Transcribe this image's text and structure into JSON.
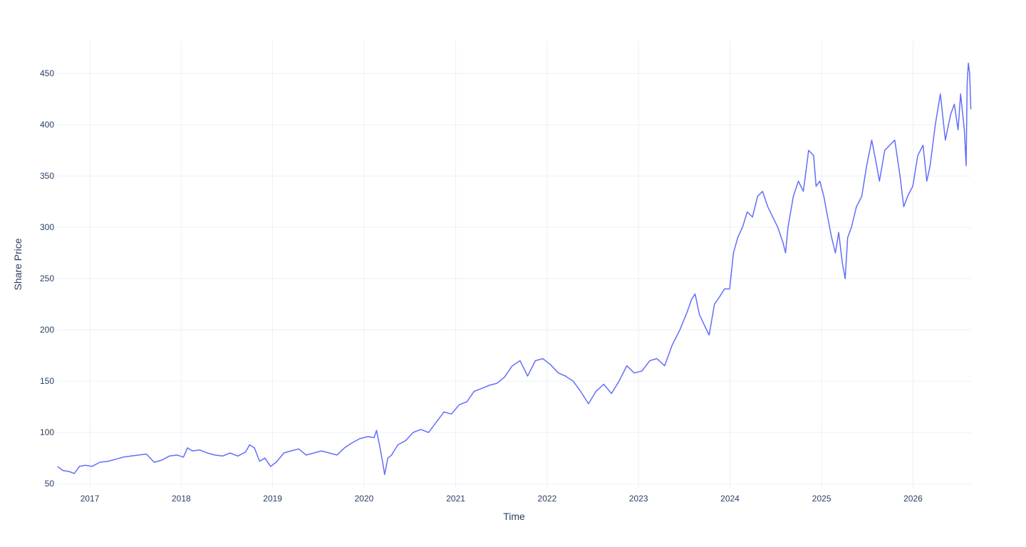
{
  "chart_data": {
    "type": "line",
    "title": "",
    "xlabel": "Time",
    "ylabel": "Share Price",
    "xlim": [
      "2016-08-23",
      "2026-08-21"
    ],
    "ylim": [
      46,
      482
    ],
    "x_ticks": [
      "2017",
      "2018",
      "2019",
      "2020",
      "2021",
      "2022",
      "2023",
      "2024",
      "2025",
      "2026"
    ],
    "y_ticks": [
      50,
      100,
      150,
      200,
      250,
      300,
      350,
      400,
      450
    ],
    "grid": true,
    "legend": "none",
    "series_color": "#636efa",
    "series": [
      {
        "x": [
          "2016-08-25",
          "2016-09-15",
          "2016-10-10",
          "2016-10-31",
          "2016-11-21",
          "2016-12-15",
          "2017-01-10",
          "2017-02-10",
          "2017-03-15",
          "2017-04-15",
          "2017-05-15",
          "2017-06-15",
          "2017-07-15",
          "2017-08-15",
          "2017-09-15",
          "2017-10-15",
          "2017-11-15",
          "2017-12-15",
          "2018-01-10",
          "2018-01-26",
          "2018-02-15",
          "2018-03-15",
          "2018-04-15",
          "2018-05-15",
          "2018-06-15",
          "2018-07-15",
          "2018-08-15",
          "2018-09-15",
          "2018-10-01",
          "2018-10-20",
          "2018-11-10",
          "2018-12-01",
          "2018-12-24",
          "2019-01-15",
          "2019-02-15",
          "2019-03-15",
          "2019-04-15",
          "2019-05-15",
          "2019-06-15",
          "2019-07-15",
          "2019-08-15",
          "2019-09-15",
          "2019-10-15",
          "2019-11-15",
          "2019-12-15",
          "2020-01-15",
          "2020-02-10",
          "2020-02-20",
          "2020-03-05",
          "2020-03-16",
          "2020-03-23",
          "2020-04-05",
          "2020-04-20",
          "2020-05-15",
          "2020-06-15",
          "2020-07-15",
          "2020-08-15",
          "2020-09-15",
          "2020-10-15",
          "2020-11-15",
          "2020-12-15",
          "2021-01-15",
          "2021-02-15",
          "2021-03-15",
          "2021-04-15",
          "2021-05-15",
          "2021-06-15",
          "2021-07-15",
          "2021-08-15",
          "2021-09-15",
          "2021-10-15",
          "2021-11-15",
          "2021-12-15",
          "2022-01-15",
          "2022-02-15",
          "2022-03-15",
          "2022-04-15",
          "2022-05-15",
          "2022-06-15",
          "2022-07-15",
          "2022-08-15",
          "2022-09-15",
          "2022-10-15",
          "2022-11-15",
          "2022-12-15",
          "2023-01-15",
          "2023-02-15",
          "2023-03-15",
          "2023-04-15",
          "2023-05-15",
          "2023-06-15",
          "2023-07-15",
          "2023-08-01",
          "2023-08-15",
          "2023-09-01",
          "2023-09-20",
          "2023-10-10",
          "2023-10-31",
          "2023-11-20",
          "2023-12-10",
          "2023-12-31",
          "2024-01-15",
          "2024-02-01",
          "2024-02-20",
          "2024-03-10",
          "2024-03-31",
          "2024-04-20",
          "2024-05-10",
          "2024-05-31",
          "2024-06-20",
          "2024-07-10",
          "2024-07-31",
          "2024-08-10",
          "2024-08-20",
          "2024-09-10",
          "2024-09-30",
          "2024-10-20",
          "2024-11-10",
          "2024-11-30",
          "2024-12-10",
          "2024-12-25",
          "2025-01-10",
          "2025-01-25",
          "2025-02-10",
          "2025-02-25",
          "2025-03-10",
          "2025-03-25",
          "2025-04-05",
          "2025-04-15",
          "2025-04-30",
          "2025-05-20",
          "2025-06-10",
          "2025-06-30",
          "2025-07-20",
          "2025-08-05",
          "2025-08-20",
          "2025-09-10",
          "2025-09-30",
          "2025-10-20",
          "2025-11-10",
          "2025-11-25",
          "2025-12-10",
          "2025-12-31",
          "2026-01-20",
          "2026-02-10",
          "2026-02-25",
          "2026-03-10",
          "2026-03-31",
          "2026-04-20",
          "2026-05-10",
          "2026-05-31",
          "2026-06-15",
          "2026-06-30",
          "2026-07-10",
          "2026-07-25",
          "2026-08-01",
          "2026-08-05",
          "2026-08-10",
          "2026-08-15",
          "2026-08-20"
        ],
        "y": [
          67,
          63,
          62,
          60,
          67,
          68,
          67,
          71,
          72,
          74,
          76,
          77,
          78,
          79,
          71,
          73,
          77,
          78,
          76,
          85,
          82,
          83,
          80,
          78,
          77,
          80,
          77,
          81,
          88,
          85,
          72,
          75,
          67,
          71,
          80,
          82,
          84,
          78,
          80,
          82,
          80,
          78,
          85,
          90,
          94,
          96,
          95,
          102,
          85,
          70,
          59,
          75,
          78,
          88,
          92,
          100,
          103,
          100,
          110,
          120,
          118,
          127,
          130,
          140,
          143,
          146,
          148,
          154,
          165,
          170,
          155,
          170,
          172,
          166,
          158,
          155,
          150,
          140,
          128,
          140,
          147,
          138,
          150,
          165,
          158,
          160,
          170,
          172,
          165,
          185,
          200,
          218,
          230,
          235,
          215,
          205,
          195,
          225,
          232,
          240,
          240,
          275,
          290,
          300,
          315,
          310,
          330,
          335,
          320,
          310,
          300,
          285,
          275,
          300,
          330,
          345,
          335,
          375,
          370,
          340,
          345,
          330,
          310,
          290,
          275,
          295,
          265,
          250,
          290,
          300,
          320,
          330,
          360,
          385,
          365,
          345,
          375,
          380,
          385,
          350,
          320,
          330,
          340,
          370,
          380,
          345,
          360,
          400,
          430,
          385,
          410,
          420,
          395,
          430,
          395,
          360,
          440,
          460,
          450,
          415
        ]
      }
    ]
  }
}
